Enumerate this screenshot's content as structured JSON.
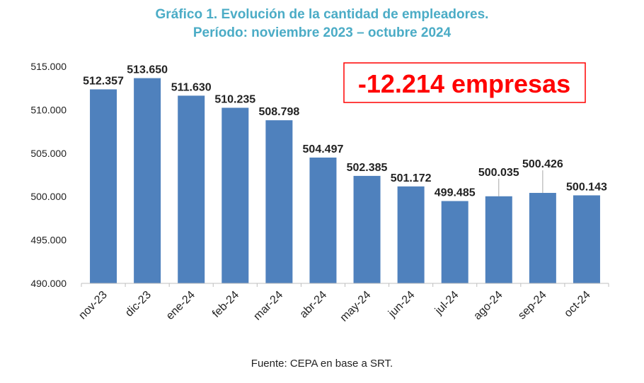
{
  "title_line_1": "Gráfico 1. Evolución de la cantidad de empleadores.",
  "title_line_2": "Período: noviembre 2023 – octubre 2024",
  "source": "Fuente: CEPA en base a SRT.",
  "callout": "-12.214 empresas",
  "colors": {
    "title": "#4bacc6",
    "bar": "#4f81bd",
    "callout": "#ff0000",
    "axis": "#bfbfbf",
    "text": "#222222"
  },
  "chart_data": {
    "type": "bar",
    "categories": [
      "nov-23",
      "dic-23",
      "ene-24",
      "feb-24",
      "mar-24",
      "abr-24",
      "may-24",
      "jun-24",
      "jul-24",
      "ago-24",
      "sep-24",
      "oct-24"
    ],
    "values": [
      512357,
      513650,
      511630,
      510235,
      508798,
      504497,
      502385,
      501172,
      499485,
      500035,
      500426,
      500143
    ],
    "data_labels": [
      "512.357",
      "513.650",
      "511.630",
      "510.235",
      "508.798",
      "504.497",
      "502.385",
      "501.172",
      "499.485",
      "500.035",
      "500.426",
      "500.143"
    ],
    "ylim": [
      490000,
      515000
    ],
    "yticks": [
      490000,
      495000,
      500000,
      505000,
      510000,
      515000
    ],
    "ytick_labels": [
      "490.000",
      "495.000",
      "500.000",
      "505.000",
      "510.000",
      "515.000"
    ],
    "grid": false,
    "legend": false
  }
}
